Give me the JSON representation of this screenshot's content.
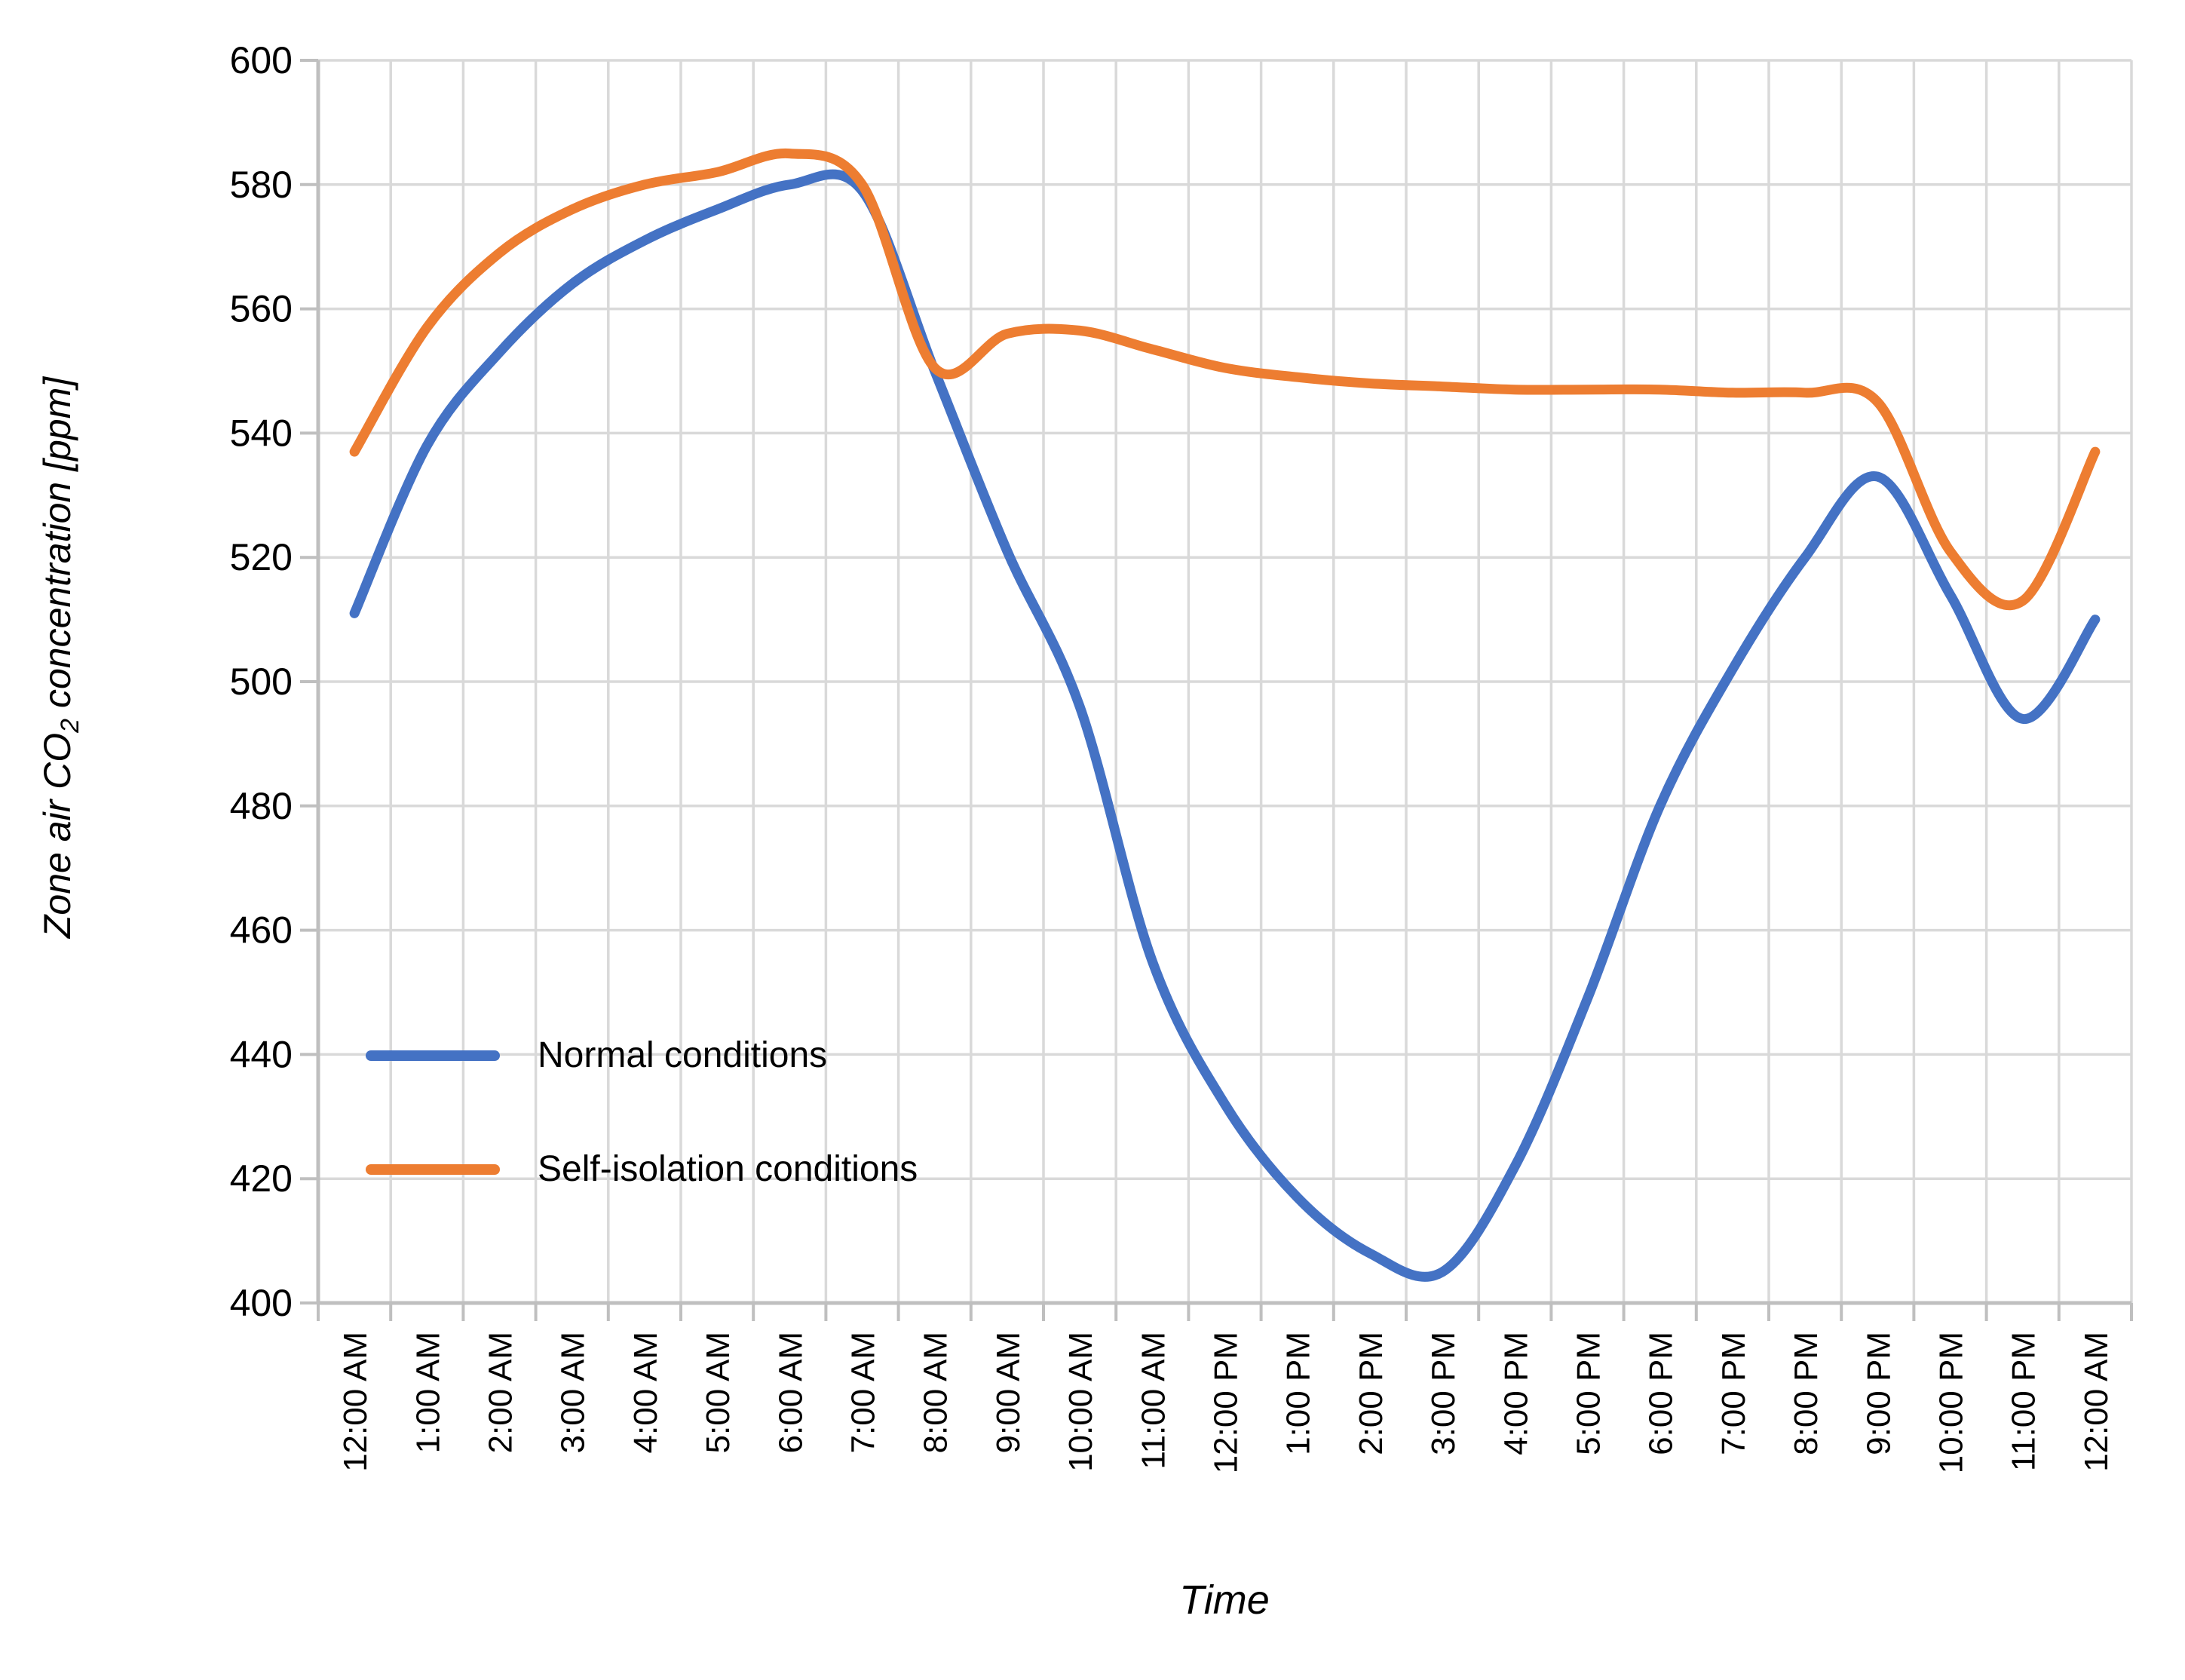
{
  "chart_data": {
    "type": "line",
    "title": "",
    "xlabel": "Time",
    "ylabel_parts": [
      "Zone air CO",
      "2",
      " concentration [ppm]"
    ],
    "x_categories": [
      "12:00 AM",
      "1:00 AM",
      "2:00 AM",
      "3:00 AM",
      "4:00 AM",
      "5:00 AM",
      "6:00 AM",
      "7:00 AM",
      "8:00 AM",
      "9:00 AM",
      "10:00 AM",
      "11:00 AM",
      "12:00 PM",
      "1:00 PM",
      "2:00 PM",
      "3:00 PM",
      "4:00 PM",
      "5:00 PM",
      "6:00 PM",
      "7:00 PM",
      "8:00 PM",
      "9:00 PM",
      "10:00 PM",
      "11:00 PM",
      "12:00 AM"
    ],
    "ylim": [
      400,
      600
    ],
    "y_tick_step": 20,
    "grid": true,
    "smoothed": true,
    "legend_position": "inside-left",
    "series": [
      {
        "name": "Normal conditions",
        "color": "#4472C4",
        "values": [
          511,
          538,
          553,
          564,
          571,
          576,
          580,
          579,
          550,
          521,
          496,
          455,
          432,
          417,
          408,
          405,
          422,
          449,
          480,
          502,
          520,
          533,
          514,
          494,
          510
        ]
      },
      {
        "name": "Self-isolation conditions",
        "color": "#ED7D31",
        "values": [
          537,
          557,
          569,
          576,
          580,
          582,
          585,
          580,
          550.5,
          556,
          556.5,
          553.5,
          550.5,
          549,
          548,
          547.5,
          547,
          547,
          547,
          546.5,
          546.5,
          545,
          521,
          513,
          537
        ]
      }
    ]
  },
  "style": {
    "gridline_color": "#D9D9D9",
    "axis_line_color": "#BFBFBF",
    "tick_color": "#BFBFBF",
    "text_color": "#000000"
  }
}
